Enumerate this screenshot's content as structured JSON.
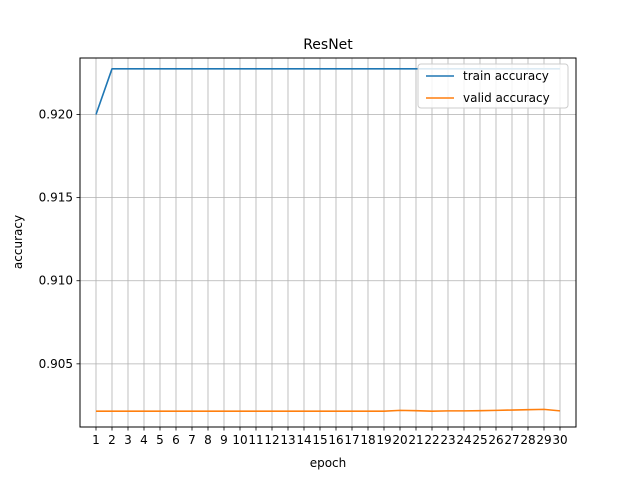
{
  "chart_data": {
    "type": "line",
    "title": "ResNet",
    "xlabel": "epoch",
    "ylabel": "accuracy",
    "x": [
      1,
      2,
      3,
      4,
      5,
      6,
      7,
      8,
      9,
      10,
      11,
      12,
      13,
      14,
      15,
      16,
      17,
      18,
      19,
      20,
      21,
      22,
      23,
      24,
      25,
      26,
      27,
      28,
      29,
      30
    ],
    "xlim": [
      0,
      31
    ],
    "ylim": [
      0.9012,
      0.9234
    ],
    "yticks": [
      0.905,
      0.91,
      0.915,
      0.92
    ],
    "ytick_labels": [
      "0.905",
      "0.910",
      "0.915",
      "0.920"
    ],
    "grid": true,
    "legend_position": "top-right",
    "series": [
      {
        "name": "train accuracy",
        "color": "#1f77b4",
        "values": [
          0.92,
          0.92275,
          0.92275,
          0.92275,
          0.92275,
          0.92275,
          0.92275,
          0.92275,
          0.92275,
          0.92275,
          0.92275,
          0.92275,
          0.92275,
          0.92275,
          0.92275,
          0.92275,
          0.92275,
          0.92275,
          0.92275,
          0.92275,
          0.92275,
          0.92275,
          0.92275,
          0.92275,
          0.92275,
          0.92275,
          0.92275,
          0.92275,
          0.92275,
          0.92275
        ]
      },
      {
        "name": "valid accuracy",
        "color": "#ff7f0e",
        "values": [
          0.90215,
          0.90215,
          0.90215,
          0.90215,
          0.90215,
          0.90215,
          0.90215,
          0.90215,
          0.90215,
          0.90215,
          0.90215,
          0.90215,
          0.90215,
          0.90215,
          0.90215,
          0.90215,
          0.90215,
          0.90215,
          0.90215,
          0.9022,
          0.90218,
          0.90215,
          0.90217,
          0.90217,
          0.90218,
          0.9022,
          0.90222,
          0.90224,
          0.90226,
          0.90217
        ]
      }
    ]
  }
}
